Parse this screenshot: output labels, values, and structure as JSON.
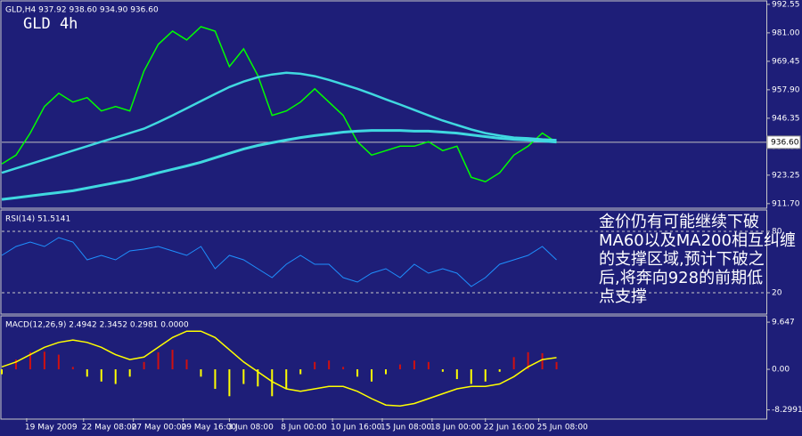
{
  "chart_data": [
    {
      "type": "line",
      "title": "GLD,H4 937.92 938.60 934.90 936.60",
      "label": "GLD 4h",
      "annotation": [
        "金价仍有可能继续下破",
        "MA60以及MA200相互纠缠",
        "的支撑区域,预计下破之",
        "后,将奔向928的前期低",
        "点支撑"
      ],
      "last_price": {
        "value": 936.6,
        "label": "936.60"
      },
      "x": [
        0,
        4,
        8,
        12,
        16,
        20,
        24,
        28,
        32,
        36,
        40,
        44,
        48,
        52,
        56,
        60,
        64,
        68,
        72,
        76,
        80,
        84,
        88,
        92,
        96,
        100,
        104,
        108,
        112,
        116,
        120,
        124,
        128,
        132,
        136,
        140,
        144,
        148,
        152,
        156
      ],
      "xlim": [
        0,
        215
      ],
      "ylim": [
        910.2,
        993.6
      ],
      "yticks": [
        992.55,
        {
          "value": 981,
          "label": "981.00"
        },
        969.45,
        {
          "value": 957.9,
          "label": "957.90"
        },
        946.35,
        {
          "value": 934.8,
          "label": "934.80"
        },
        923.25,
        {
          "value": 911.7,
          "label": "911.70"
        }
      ],
      "series": [
        {
          "color": "#00ff00",
          "width": 1.5,
          "values": [
            927.8,
            931.4,
            940.3,
            951.1,
            956.5,
            952.9,
            954.7,
            949.3,
            951.1,
            949.3,
            965.5,
            976.3,
            981.7,
            978.1,
            983.5,
            981.7,
            967.3,
            974.5,
            963.7,
            947.5,
            949.3,
            952.9,
            958.3,
            952.9,
            947.5,
            936.8,
            931.4,
            933.2,
            935.0,
            935.0,
            936.8,
            933.2,
            935.0,
            922.4,
            920.6,
            924.2,
            931.4,
            935.0,
            940.3,
            936.6
          ]
        },
        {
          "color": "#40d8e0",
          "width": 2.5,
          "values": [
            924.2,
            926.0,
            927.8,
            929.6,
            931.4,
            933.2,
            935.0,
            936.8,
            938.5,
            940.3,
            942.1,
            944.7,
            947.5,
            950.4,
            953.3,
            956.2,
            959.0,
            961.2,
            963.0,
            964.1,
            964.8,
            964.4,
            963.4,
            961.9,
            960.1,
            958.3,
            956.2,
            954.0,
            951.9,
            949.7,
            947.5,
            945.4,
            943.6,
            941.8,
            940.3,
            939.3,
            938.5,
            938.2,
            937.8,
            937.5
          ]
        },
        {
          "color": "#40d8e0",
          "width": 3,
          "values": [
            913.4,
            914.1,
            914.8,
            915.5,
            916.2,
            916.9,
            918.0,
            919.1,
            920.2,
            921.3,
            922.7,
            924.2,
            925.6,
            927.0,
            928.5,
            930.3,
            932.1,
            933.9,
            935.3,
            936.4,
            937.5,
            938.5,
            939.3,
            940.0,
            940.7,
            941.1,
            941.4,
            941.4,
            941.4,
            941.1,
            941.1,
            940.7,
            940.3,
            939.6,
            938.9,
            938.2,
            937.8,
            937.5,
            937.1,
            936.7
          ]
        }
      ]
    },
    {
      "type": "line",
      "title": "RSI(14) 51.5141",
      "x": [
        0,
        4,
        8,
        12,
        16,
        20,
        24,
        28,
        32,
        36,
        40,
        44,
        48,
        52,
        56,
        60,
        64,
        68,
        72,
        76,
        80,
        84,
        88,
        92,
        96,
        100,
        104,
        108,
        112,
        116,
        120,
        124,
        128,
        132,
        136,
        140,
        144,
        148,
        152,
        156
      ],
      "xlim": [
        0,
        215
      ],
      "ylim": [
        0,
        100
      ],
      "yticks": [
        80,
        20
      ],
      "grid": true,
      "series": [
        {
          "color": "#1e90ff",
          "width": 1,
          "values": [
            56.5,
            65.2,
            69.6,
            65.2,
            73.9,
            69.6,
            52.2,
            56.5,
            52.2,
            60.9,
            62.6,
            65.2,
            60.9,
            56.5,
            65.2,
            43.5,
            56.5,
            52.2,
            43.5,
            34.8,
            47.8,
            56.5,
            47.8,
            47.8,
            34.8,
            30.4,
            39.1,
            43.5,
            34.8,
            47.8,
            39.1,
            43.5,
            39.1,
            26.1,
            34.8,
            47.8,
            52.2,
            56.5,
            65.2,
            52.2
          ]
        }
      ]
    },
    {
      "type": "bar",
      "title": "MACD(12,26,9) 2.4942 2.3452 0.2981 0.0000",
      "x": [
        0,
        4,
        8,
        12,
        16,
        20,
        24,
        28,
        32,
        36,
        40,
        44,
        48,
        52,
        56,
        60,
        64,
        68,
        72,
        76,
        80,
        84,
        88,
        92,
        96,
        100,
        104,
        108,
        112,
        116,
        120,
        124,
        128,
        132,
        136,
        140,
        144,
        148,
        152,
        156
      ],
      "xlim": [
        0,
        215
      ],
      "ylim": [
        -10.0,
        10.75
      ],
      "yticks": [
        9.647,
        {
          "value": 0,
          "label": "0.00"
        },
        -8.2991
      ],
      "xticks": [
        {
          "value": 7,
          "label": "19 May 2009"
        },
        {
          "value": 23,
          "label": "22 May 08:00"
        },
        {
          "value": 37,
          "label": "27 May 00:00"
        },
        {
          "value": 51,
          "label": "29 May 16:00"
        },
        {
          "value": 64,
          "label": "3 Jun 08:00"
        },
        {
          "value": 79,
          "label": "8 Jun 00:00"
        },
        {
          "value": 93,
          "label": "10 Jun 16:00"
        },
        {
          "value": 107,
          "label": "15 Jun 08:00"
        },
        {
          "value": 121,
          "label": "18 Jun 00:00"
        },
        {
          "value": 136,
          "label": "22 Jun 16:00"
        },
        {
          "value": 151,
          "label": "25 Jun 08:00"
        }
      ],
      "positive_color": "#d01010",
      "negative_color": "#ffff00",
      "values": [
        -1.0,
        2.0,
        3.5,
        3.6,
        3.0,
        0.5,
        -1.5,
        -2.5,
        -3.0,
        -1.5,
        1.5,
        3.5,
        4.0,
        2.0,
        -1.5,
        -4.0,
        -5.5,
        -3.0,
        -3.5,
        -5.5,
        -4.0,
        -1.0,
        1.5,
        1.8,
        0.5,
        -1.5,
        -2.5,
        -1.0,
        1.0,
        1.8,
        1.5,
        -0.5,
        -2.0,
        -3.0,
        -2.5,
        -0.5,
        2.5,
        3.5,
        3.3,
        1.5
      ],
      "series": [
        {
          "color": "#ffff00",
          "width": 1.5,
          "values": [
            0.5,
            1.5,
            3.0,
            4.5,
            5.5,
            6.0,
            5.5,
            4.5,
            3.0,
            2.0,
            2.5,
            4.5,
            6.5,
            7.8,
            7.8,
            6.5,
            4.0,
            1.5,
            -0.5,
            -2.5,
            -4.0,
            -4.5,
            -4.0,
            -3.5,
            -3.5,
            -4.5,
            -6.0,
            -7.3,
            -7.5,
            -7.0,
            -6.0,
            -5.0,
            -4.0,
            -3.5,
            -3.5,
            -3.0,
            -1.5,
            0.5,
            2.0,
            2.4
          ]
        }
      ]
    }
  ]
}
